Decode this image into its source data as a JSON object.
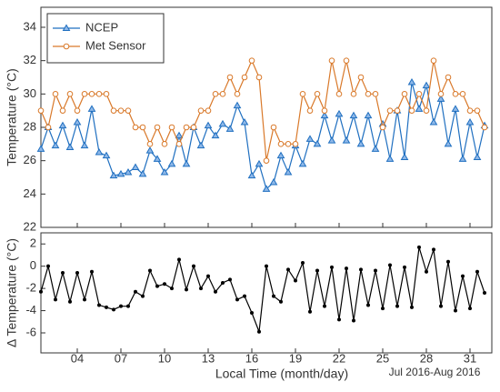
{
  "chart_data": [
    {
      "type": "line",
      "ylabel": "Temperature (°C)",
      "x": [
        1.5,
        2,
        2.5,
        3,
        3.5,
        4,
        4.5,
        5,
        5.5,
        6,
        6.5,
        7,
        7.5,
        8,
        8.5,
        9,
        9.5,
        10,
        10.5,
        11,
        11.5,
        12,
        12.5,
        13,
        13.5,
        14,
        14.5,
        15,
        15.5,
        16,
        16.5,
        17,
        17.5,
        18,
        18.5,
        19,
        19.5,
        20,
        20.5,
        21,
        21.5,
        22,
        22.5,
        23,
        23.5,
        24,
        24.5,
        25,
        25.5,
        26,
        26.5,
        27,
        27.5,
        28,
        28.5,
        29,
        29.5,
        30,
        30.5,
        31,
        31.5,
        32
      ],
      "series": [
        {
          "name": "NCEP",
          "color": "#1f6fc0",
          "marker": "triangle",
          "values": [
            26.7,
            28,
            26.9,
            28.1,
            26.8,
            28.3,
            26.9,
            29.1,
            26.5,
            26.3,
            25.1,
            25.2,
            25.3,
            25.6,
            25.2,
            26.6,
            26.1,
            25.3,
            25.8,
            27.5,
            25.8,
            28.0,
            26.9,
            28.1,
            27.5,
            28.2,
            27.9,
            29.3,
            28.3,
            25.1,
            25.8,
            24.3,
            24.7,
            26.3,
            25.3,
            26.9,
            25.8,
            27.3,
            27.0,
            28.7,
            27.2,
            28.8,
            27.2,
            28.7,
            27.0,
            28.7,
            26.7,
            28.2,
            26.1,
            29.0,
            26.2,
            30.7,
            29.1,
            30.5,
            28.3,
            29.7,
            27.0,
            29.1,
            26.1,
            28.3,
            26.2,
            28.1
          ]
        },
        {
          "name": "Met Sensor",
          "color": "#d9792a",
          "marker": "circle",
          "values": [
            29,
            28,
            30,
            29,
            30,
            29,
            30,
            30,
            30,
            30,
            29,
            29,
            29,
            28,
            28,
            27,
            28,
            27,
            28,
            27,
            28,
            28,
            29,
            29,
            30,
            30,
            31,
            30,
            31,
            32,
            31,
            26,
            28,
            27,
            27,
            27,
            30,
            29,
            30,
            29,
            32,
            30,
            32,
            30,
            31,
            30,
            30,
            28,
            29,
            29,
            30,
            29,
            30,
            29,
            32,
            30,
            31,
            30,
            30,
            29,
            29,
            28
          ]
        }
      ],
      "xlim": [
        1.5,
        32.5
      ],
      "xticks": [
        4,
        7,
        10,
        13,
        16,
        19,
        22,
        25,
        28,
        31
      ],
      "ylim": [
        22,
        35.2
      ],
      "yticks": [
        22,
        24,
        26,
        28,
        30,
        32,
        34
      ],
      "legend": "upper left"
    },
    {
      "type": "line",
      "ylabel": "Δ Temperature (°C)",
      "xlabel": "Local Time (month/day)",
      "annotation": "Jul 2016-Aug 2016",
      "color": "#000000",
      "x": [
        1.5,
        2,
        2.5,
        3,
        3.5,
        4,
        4.5,
        5,
        5.5,
        6,
        6.5,
        7,
        7.5,
        8,
        8.5,
        9,
        9.5,
        10,
        10.5,
        11,
        11.5,
        12,
        12.5,
        13,
        13.5,
        14,
        14.5,
        15,
        15.5,
        16,
        16.5,
        17,
        17.5,
        18,
        18.5,
        19,
        19.5,
        20,
        20.5,
        21,
        21.5,
        22,
        22.5,
        23,
        23.5,
        24,
        24.5,
        25,
        25.5,
        26,
        26.5,
        27,
        27.5,
        28,
        28.5,
        29,
        29.5,
        30,
        30.5,
        31,
        31.5,
        32
      ],
      "values": [
        -2.3,
        0,
        -3,
        -0.6,
        -3.2,
        -0.6,
        -3,
        -0.5,
        -3.5,
        -3.7,
        -3.9,
        -3.6,
        -3.6,
        -2.3,
        -2.7,
        -0.4,
        -1.8,
        -1.6,
        -2,
        0.6,
        -2.1,
        0,
        -2,
        -0.9,
        -2.3,
        -1.5,
        -1.2,
        -3,
        -2.7,
        -4.2,
        -5.9,
        0,
        -2.7,
        -3.2,
        -0.3,
        -1.3,
        0.3,
        -4.1,
        -0.4,
        -3.6,
        -0.1,
        -4.8,
        -0.2,
        -4.9,
        -0.3,
        -3.5,
        -0.4,
        -3.8,
        0.1,
        -3.6,
        -0.1,
        -3.7,
        1.7,
        -0.5,
        1.5,
        -3.6,
        0.4,
        -4,
        -0.9,
        -3.8,
        -0.5,
        -2.4
      ],
      "xlim": [
        1.5,
        32.5
      ],
      "xticks": [
        {
          "value": 4,
          "label": "04"
        },
        {
          "value": 7,
          "label": "07"
        },
        {
          "value": 10,
          "label": "10"
        },
        {
          "value": 13,
          "label": "13"
        },
        {
          "value": 16,
          "label": "16"
        },
        {
          "value": 19,
          "label": "19"
        },
        {
          "value": 22,
          "label": "22"
        },
        {
          "value": 25,
          "label": "25"
        },
        {
          "value": 28,
          "label": "28"
        },
        {
          "value": 31,
          "label": "31"
        }
      ],
      "ylim": [
        -7.8,
        3
      ],
      "yticks": [
        -6,
        -4,
        -2,
        0,
        2
      ]
    }
  ]
}
